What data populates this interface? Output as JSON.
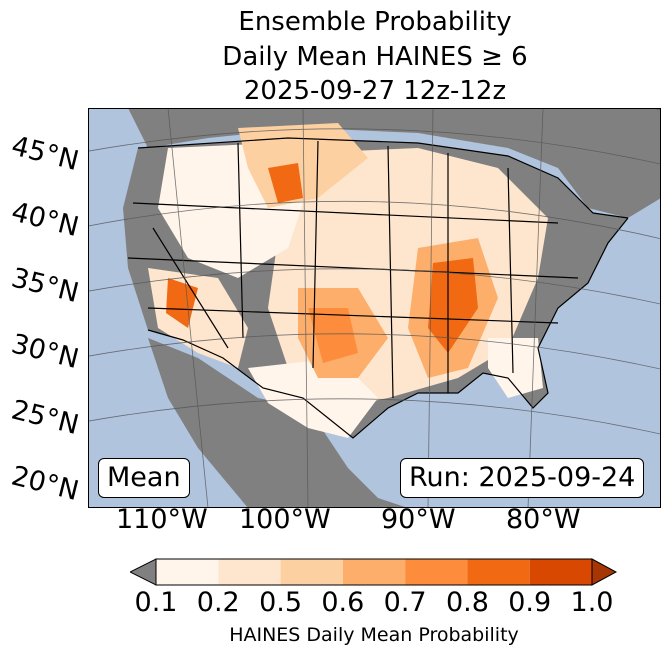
{
  "title": {
    "line1": "Ensemble Probability",
    "line2": "Daily Mean HAINES ≥ 6",
    "line3": "2025-09-27 12z-12z"
  },
  "map": {
    "lat_labels": [
      "45°N",
      "40°N",
      "35°N",
      "30°N",
      "25°N",
      "20°N"
    ],
    "lon_labels": [
      "110°W",
      "100°W",
      "90°W",
      "80°W"
    ],
    "statistic_label": "Mean",
    "run_label": "Run: 2025-09-24",
    "colors": {
      "ocean": "#b0c4de",
      "land_no_data": "#808080",
      "borders": "#000000",
      "gridlines": "#555555"
    }
  },
  "colorbar": {
    "label": "HAINES Daily Mean Probability",
    "tick_labels": [
      "0.1",
      "0.2",
      "0.5",
      "0.6",
      "0.7",
      "0.8",
      "0.9",
      "1.0"
    ],
    "under_color": "#808080",
    "colors": [
      "#fff5eb",
      "#fee6ce",
      "#fdd0a2",
      "#fdae6b",
      "#fd8d3c",
      "#f16913",
      "#d94801",
      "#a63603"
    ]
  }
}
